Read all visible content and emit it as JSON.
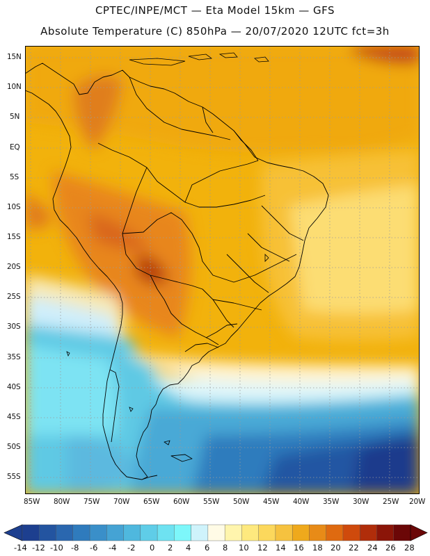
{
  "header": {
    "line1": "CPTEC/INPE/MCT —  Eta Model 15km — GFS",
    "line2": "Absolute Temperature (C) 850hPa — 20/07/2020 12UTC fct=3h"
  },
  "map": {
    "lat_labels": [
      "15N",
      "10N",
      "5N",
      "EQ",
      "5S",
      "10S",
      "15S",
      "20S",
      "25S",
      "30S",
      "35S",
      "40S",
      "45S",
      "50S",
      "55S"
    ],
    "lon_labels": [
      "85W",
      "80W",
      "75W",
      "70W",
      "65W",
      "60W",
      "55W",
      "50W",
      "45W",
      "40W",
      "35W",
      "30W",
      "25W",
      "20W"
    ]
  },
  "colorbar": {
    "labels": [
      "-14",
      "-12",
      "-10",
      "-8",
      "-6",
      "-4",
      "-2",
      "0",
      "2",
      "4",
      "6",
      "8",
      "10",
      "12",
      "14",
      "16",
      "18",
      "20",
      "22",
      "24",
      "26",
      "28"
    ],
    "colors": [
      "#1d3f8f",
      "#2354a0",
      "#2a67af",
      "#2f7bbd",
      "#3a8fc9",
      "#45a3d4",
      "#4fb8de",
      "#5fcde8",
      "#6ee2f1",
      "#7df7fa",
      "#cff3fb",
      "#fffbe6",
      "#fff5ad",
      "#fee97e",
      "#fcd85c",
      "#f6c23f",
      "#efa91c",
      "#e88b17",
      "#df6a10",
      "#cf4a0c",
      "#b02d0a",
      "#8b1508",
      "#6b0707"
    ]
  }
}
